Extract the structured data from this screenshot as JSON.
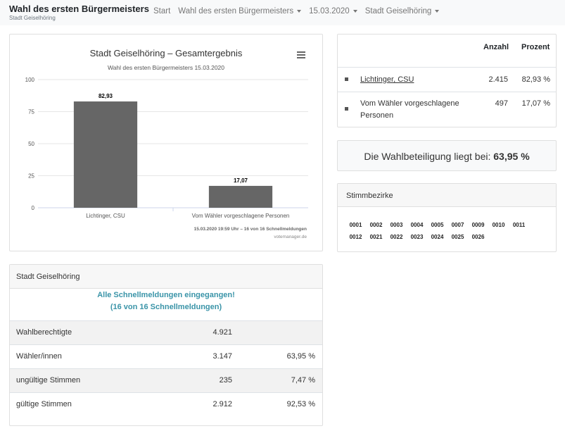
{
  "navbar": {
    "title": "Wahl des ersten Bürgermeisters",
    "subtitle": "Stadt Geiselhöring",
    "items": [
      {
        "label": "Start",
        "dropdown": false
      },
      {
        "label": "Wahl des ersten Bürgermeisters",
        "dropdown": true
      },
      {
        "label": "15.03.2020",
        "dropdown": true
      },
      {
        "label": "Stadt Geiselhöring",
        "dropdown": true
      }
    ]
  },
  "chart_data": {
    "type": "bar",
    "title": "Stadt Geiselhöring – Gesamtergebnis",
    "subtitle": "Wahl des ersten Bürgermeisters 15.03.2020",
    "categories": [
      "Lichtinger, CSU",
      "Vom Wähler vorgeschlagene Personen"
    ],
    "values": [
      82.93,
      17.07
    ],
    "data_labels": [
      "82,93",
      "17,07"
    ],
    "ylim": [
      0,
      100
    ],
    "yticks": [
      0,
      25,
      50,
      75,
      100
    ],
    "grid": true,
    "bar_color": "#666666",
    "credit": "15.03.2020 19:59 Uhr – 16 von 16 Schnellmeldungen",
    "source": "votemanager.de"
  },
  "results": {
    "headers": {
      "count": "Anzahl",
      "percent": "Prozent"
    },
    "rows": [
      {
        "name": "Lichtinger, CSU",
        "count": "2.415",
        "percent": "82,93 %",
        "link": true
      },
      {
        "name": "Vom Wähler vorgeschlagene Personen",
        "count": "497",
        "percent": "17,07 %",
        "link": false
      }
    ]
  },
  "turnout": {
    "label": "Die Wahlbeteiligung liegt bei:",
    "value": "63,95 %"
  },
  "districts": {
    "title": "Stimmbezirke",
    "items": [
      "0001",
      "0002",
      "0003",
      "0004",
      "0005",
      "0007",
      "0009",
      "0010",
      "0011",
      "0012",
      "0021",
      "0022",
      "0023",
      "0024",
      "0025",
      "0026"
    ]
  },
  "stats": {
    "title": "Stadt Geiselhöring",
    "notice_line1": "Alle Schnellmeldungen eingegangen!",
    "notice_line2": "(16 von 16 Schnellmeldungen)",
    "rows": [
      {
        "label": "Wahlberechtigte",
        "value": "4.921",
        "percent": ""
      },
      {
        "label": "Wähler/innen",
        "value": "3.147",
        "percent": "63,95 %"
      },
      {
        "label": "ungültige Stimmen",
        "value": "235",
        "percent": "7,47 %"
      },
      {
        "label": "gültige Stimmen",
        "value": "2.912",
        "percent": "92,53 %"
      }
    ]
  },
  "colors": {
    "accent": "#3a94a8",
    "bar": "#666666",
    "navbar_bg": "#f8f9fa"
  }
}
